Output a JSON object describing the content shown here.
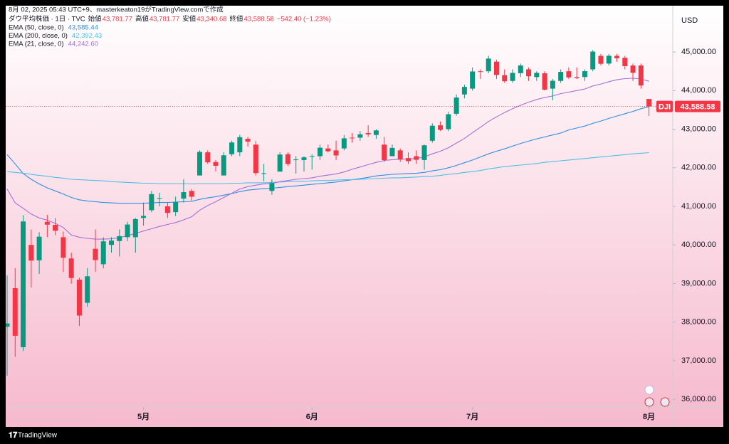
{
  "header": {
    "attribution": "8月 02, 2025 05:43 UTC+9、masterkeaton19がTradingView.comで作成",
    "symbol": "ダウ平均株価 · 1日 · TVC",
    "ohlc": [
      {
        "label": "始値",
        "value": "43,781.77"
      },
      {
        "label": "高値",
        "value": "43,781.77"
      },
      {
        "label": "安値",
        "value": "43,340.68"
      },
      {
        "label": "終値",
        "value": "43,588.58"
      }
    ],
    "change": "−542.40 (−1.23%)"
  },
  "chart_data": {
    "type": "candlestick",
    "currency": "USD",
    "symbol": "DJI",
    "last_price_label": "43,588.58",
    "up_color": "#089981",
    "down_color": "#f23645",
    "categories": [
      null,
      null,
      null,
      null,
      null,
      null,
      null,
      null,
      null,
      null,
      null,
      null,
      null,
      null,
      null,
      null,
      null,
      "5月",
      null,
      null,
      null,
      null,
      null,
      null,
      null,
      null,
      null,
      null,
      null,
      null,
      null,
      null,
      null,
      null,
      null,
      null,
      null,
      null,
      "6月",
      null,
      null,
      null,
      null,
      null,
      null,
      null,
      null,
      null,
      null,
      null,
      null,
      null,
      null,
      null,
      null,
      null,
      null,
      null,
      "7月",
      null,
      null,
      null,
      null,
      null,
      null,
      null,
      null,
      null,
      null,
      null,
      null,
      null,
      null,
      null,
      null,
      null,
      null,
      null,
      null,
      null,
      "8月"
    ],
    "open": [
      37880,
      38880,
      37350,
      40000,
      39600,
      40600,
      40520,
      40200,
      39650,
      39100,
      38500,
      39900,
      39500,
      40000,
      40100,
      40200,
      40200,
      40700,
      40900,
      41200,
      41000,
      40850,
      41200,
      41400,
      41800,
      42400,
      42150,
      41800,
      42350,
      42400,
      42750,
      42600,
      41850,
      41400,
      41900,
      42350,
      42200,
      42200,
      42300,
      42300,
      42500,
      42450,
      42500,
      42780,
      42780,
      42900,
      42850,
      42600,
      42300,
      42450,
      42250,
      42300,
      42200,
      42700,
      43100,
      43000,
      43400,
      43900,
      44050,
      44500,
      44500,
      44750,
      44400,
      44250,
      44450,
      44550,
      44350,
      44450,
      44050,
      44250,
      44500,
      44350,
      44350,
      44550,
      44900,
      44700,
      44900,
      44850,
      44650,
      44650,
      43781.77
    ],
    "high": [
      39210,
      39400,
      40770,
      40400,
      40330,
      40780,
      40700,
      40350,
      39800,
      39150,
      39400,
      40400,
      40200,
      40200,
      40400,
      40600,
      40700,
      41100,
      41400,
      41350,
      41100,
      41250,
      41700,
      41450,
      42450,
      42450,
      42200,
      42400,
      42700,
      42850,
      42800,
      42700,
      42100,
      41700,
      42400,
      42400,
      42300,
      42300,
      42350,
      42600,
      42600,
      42700,
      42850,
      42900,
      42950,
      43100,
      43000,
      42800,
      42600,
      42500,
      42400,
      42450,
      42600,
      43150,
      43200,
      43450,
      43900,
      44150,
      44600,
      44550,
      44900,
      44800,
      44550,
      44550,
      44700,
      44600,
      44500,
      44500,
      44300,
      44550,
      44600,
      44600,
      44550,
      45050,
      44950,
      44950,
      44950,
      44900,
      44700,
      44700,
      43781.77
    ],
    "low": [
      36610,
      37100,
      37250,
      38900,
      39250,
      40200,
      40250,
      39300,
      39000,
      37900,
      38400,
      39300,
      39400,
      39800,
      39700,
      40100,
      39800,
      40500,
      40850,
      41000,
      40700,
      40750,
      41100,
      41150,
      41800,
      42100,
      41900,
      41800,
      42300,
      42300,
      42550,
      41800,
      41650,
      41300,
      41900,
      42050,
      41850,
      41900,
      41950,
      42200,
      42400,
      42200,
      42450,
      42650,
      42700,
      42800,
      42750,
      42150,
      42300,
      42150,
      42100,
      42100,
      41950,
      42650,
      42950,
      42950,
      43350,
      43800,
      44000,
      44300,
      44450,
      44300,
      44200,
      44200,
      44350,
      44250,
      44250,
      44000,
      43750,
      44200,
      44300,
      44300,
      44250,
      44500,
      44650,
      44650,
      44750,
      44550,
      44250,
      44050,
      43340.68
    ],
    "close": [
      37966,
      37646,
      40608,
      39594,
      40213,
      40525,
      40368,
      39669,
      39142,
      38170,
      39187,
      39607,
      40093,
      40114,
      40228,
      40528,
      40669,
      40753,
      41317,
      41219,
      40829,
      41114,
      41368,
      41249,
      42410,
      42140,
      42051,
      42323,
      42655,
      42792,
      42677,
      41860,
      41859,
      41603,
      42343,
      42098,
      42216,
      42270,
      42305,
      42520,
      42428,
      42319,
      42763,
      42762,
      42867,
      42866,
      42968,
      42198,
      42515,
      42215,
      42172,
      42207,
      42582,
      43089,
      42982,
      43386,
      43819,
      44095,
      44495,
      44485,
      44829,
      44406,
      44241,
      44458,
      44651,
      44371,
      44460,
      44023,
      44254,
      44484,
      44342,
      44323,
      44502,
      45010,
      44694,
      44902,
      44838,
      44633,
      44461,
      44131,
      43588.58
    ],
    "series": [
      {
        "name": "EMA (50, close, 0)",
        "color": "#2e8fe0",
        "value_label": "43,585.44",
        "values": [
          42340,
          42100,
          41850,
          41700,
          41580,
          41480,
          41400,
          41320,
          41230,
          41170,
          41140,
          41120,
          41100,
          41090,
          41080,
          41080,
          41080,
          41080,
          41090,
          41100,
          41100,
          41110,
          41120,
          41130,
          41180,
          41220,
          41250,
          41290,
          41330,
          41380,
          41420,
          41440,
          41460,
          41470,
          41490,
          41510,
          41530,
          41550,
          41570,
          41590,
          41610,
          41630,
          41660,
          41690,
          41720,
          41750,
          41790,
          41810,
          41830,
          41840,
          41850,
          41860,
          41880,
          41920,
          41950,
          42000,
          42060,
          42130,
          42200,
          42280,
          42360,
          42430,
          42490,
          42560,
          42630,
          42690,
          42750,
          42800,
          42850,
          42900,
          42980,
          43030,
          43080,
          43150,
          43210,
          43280,
          43340,
          43400,
          43460,
          43530,
          43585.44
        ]
      },
      {
        "name": "EMA (200, close, 0)",
        "color": "#4fbfe6",
        "value_label": "42,392.43",
        "values": [
          41900,
          41880,
          41860,
          41830,
          41800,
          41780,
          41750,
          41730,
          41700,
          41690,
          41680,
          41670,
          41660,
          41640,
          41630,
          41620,
          41610,
          41600,
          41600,
          41590,
          41590,
          41590,
          41590,
          41580,
          41590,
          41590,
          41590,
          41590,
          41600,
          41600,
          41610,
          41610,
          41610,
          41620,
          41630,
          41640,
          41650,
          41650,
          41660,
          41670,
          41670,
          41680,
          41690,
          41690,
          41700,
          41710,
          41720,
          41730,
          41740,
          41740,
          41750,
          41760,
          41770,
          41780,
          41800,
          41830,
          41850,
          41880,
          41900,
          41930,
          41970,
          42000,
          42030,
          42050,
          42070,
          42090,
          42110,
          42140,
          42160,
          42180,
          42200,
          42220,
          42240,
          42260,
          42280,
          42300,
          42320,
          42340,
          42360,
          42375,
          42392.43
        ]
      },
      {
        "name": "EMA (21, close, 0)",
        "color": "#a46fd6",
        "value_label": "44,242.60",
        "values": [
          41450,
          41090,
          40950,
          40800,
          40700,
          40640,
          40560,
          40450,
          40260,
          40200,
          40170,
          40150,
          40150,
          40160,
          40190,
          40240,
          40300,
          40360,
          40420,
          40480,
          40530,
          40580,
          40650,
          40730,
          40900,
          41020,
          41120,
          41230,
          41340,
          41450,
          41510,
          41550,
          41580,
          41590,
          41640,
          41670,
          41700,
          41720,
          41740,
          41780,
          41810,
          41840,
          41890,
          41960,
          42020,
          42080,
          42140,
          42190,
          42210,
          42220,
          42230,
          42240,
          42280,
          42360,
          42430,
          42520,
          42640,
          42760,
          42910,
          43050,
          43200,
          43320,
          43430,
          43530,
          43620,
          43700,
          43770,
          43820,
          43860,
          43920,
          43960,
          44000,
          44040,
          44120,
          44170,
          44230,
          44280,
          44310,
          44320,
          44300,
          44242.6
        ]
      }
    ],
    "ylim": [
      35800,
      46200
    ],
    "yticks": [
      {
        "value": 36000,
        "label": "36,000.00"
      },
      {
        "value": 37000,
        "label": "37,000.00"
      },
      {
        "value": 38000,
        "label": "38,000.00"
      },
      {
        "value": 39000,
        "label": "39,000.00"
      },
      {
        "value": 40000,
        "label": "40,000.00"
      },
      {
        "value": 41000,
        "label": "41,000.00"
      },
      {
        "value": 42000,
        "label": "42,000.00"
      },
      {
        "value": 43000,
        "label": "43,000.00"
      },
      {
        "value": 44000,
        "label": "44,000.00"
      },
      {
        "value": 45000,
        "label": "45,000.00"
      }
    ]
  },
  "footer": {
    "brand": "TradingView"
  }
}
